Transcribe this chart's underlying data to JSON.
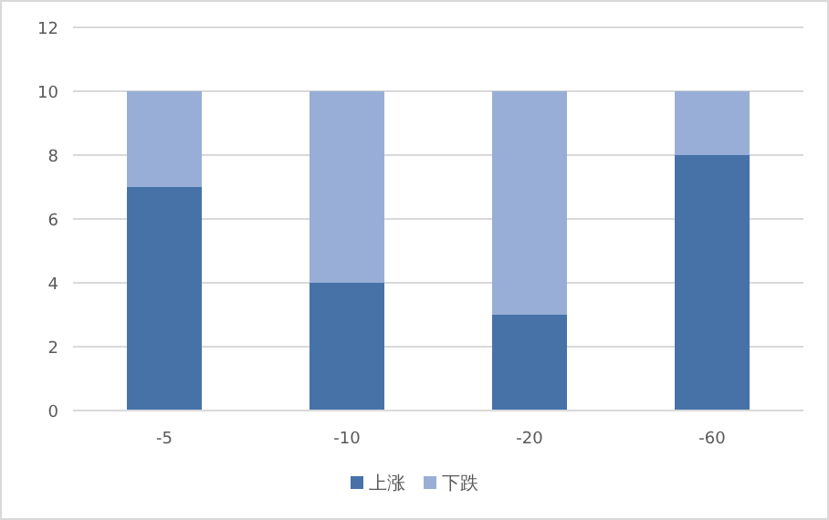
{
  "chart_data": {
    "type": "bar",
    "stacked": true,
    "categories": [
      "-5",
      "-10",
      "-20",
      "-60"
    ],
    "series": [
      {
        "name": "上涨",
        "color": "#4672a8",
        "values": [
          7,
          4,
          3,
          8
        ]
      },
      {
        "name": "下跌",
        "color": "#98aed6",
        "values": [
          3,
          6,
          7,
          2
        ]
      }
    ],
    "ylim": [
      0,
      12
    ],
    "yticks": [
      0,
      2,
      4,
      6,
      8,
      10,
      12
    ],
    "grid": "y",
    "legend": "bottom"
  }
}
